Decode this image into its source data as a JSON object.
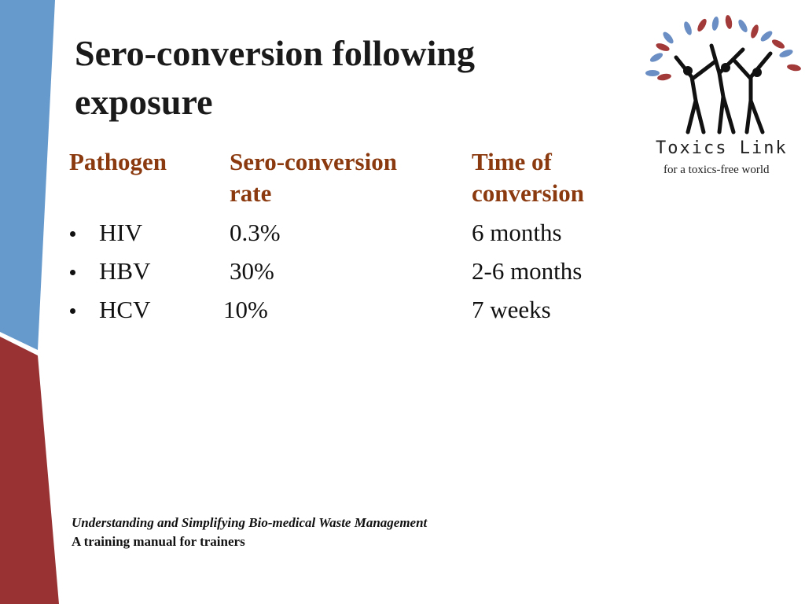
{
  "slide": {
    "title": [
      "Sero-conversion following",
      "exposure"
    ],
    "table": {
      "headers": [
        [
          "Pathogen"
        ],
        [
          "Sero-conversion",
          "rate"
        ],
        [
          "Time of",
          "conversion"
        ]
      ],
      "rows": [
        [
          "HIV",
          "0.3%",
          "6 months"
        ],
        [
          "HBV",
          "30%",
          "2-6 months"
        ],
        [
          "HCV",
          "10%",
          "7 weeks"
        ]
      ]
    },
    "logo": {
      "name": "Toxics Link",
      "tagline": "for a toxics-free world"
    },
    "footer": [
      "Understanding and Simplifying Bio-medical Waste Management",
      "A training manual for trainers"
    ]
  }
}
